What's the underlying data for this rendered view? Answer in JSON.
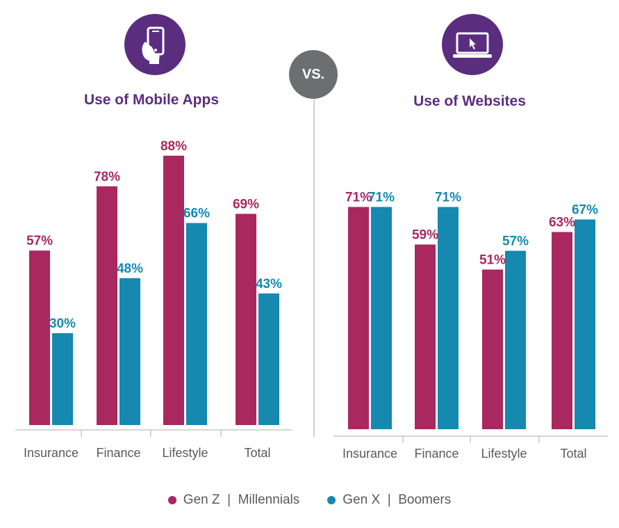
{
  "vs_label": "VS.",
  "colors": {
    "series_a": "#a8285f",
    "series_b": "#1589b0",
    "title": "#5b2d7f",
    "vs": "#6d6e70"
  },
  "icons": {
    "left": "mobile-phone-in-hand-icon",
    "right": "laptop-cursor-icon"
  },
  "legend": {
    "series_a": "Gen Z  |  Millennials",
    "series_b": "Gen X  |  Boomers"
  },
  "chart_data": [
    {
      "type": "bar",
      "title": "Use of Mobile Apps",
      "categories": [
        "Insurance",
        "Finance",
        "Lifestyle",
        "Total"
      ],
      "series": [
        {
          "name": "Gen Z | Millennials",
          "values": [
            57,
            78,
            88,
            69
          ]
        },
        {
          "name": "Gen X | Boomers",
          "values": [
            30,
            48,
            66,
            43
          ]
        }
      ],
      "value_labels": {
        "a": [
          "57%",
          "78%",
          "88%",
          "69%"
        ],
        "b": [
          "30%",
          "48%",
          "66%",
          "43%"
        ]
      },
      "ylim": [
        0,
        100
      ]
    },
    {
      "type": "bar",
      "title": "Use of Websites",
      "categories": [
        "Insurance",
        "Finance",
        "Lifestyle",
        "Total"
      ],
      "series": [
        {
          "name": "Gen Z | Millennials",
          "values": [
            71,
            59,
            51,
            63
          ]
        },
        {
          "name": "Gen X | Boomers",
          "values": [
            71,
            71,
            57,
            67
          ]
        }
      ],
      "value_labels": {
        "a": [
          "71%",
          "59%",
          "51%",
          "63%"
        ],
        "b": [
          "71%",
          "71%",
          "57%",
          "67%"
        ]
      },
      "ylim": [
        0,
        100
      ]
    }
  ]
}
